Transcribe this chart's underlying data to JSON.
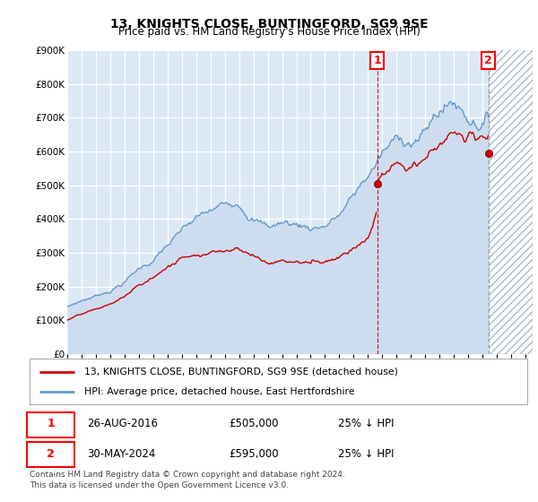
{
  "title": "13, KNIGHTS CLOSE, BUNTINGFORD, SG9 9SE",
  "subtitle": "Price paid vs. HM Land Registry's House Price Index (HPI)",
  "legend_line1": "13, KNIGHTS CLOSE, BUNTINGFORD, SG9 9SE (detached house)",
  "legend_line2": "HPI: Average price, detached house, East Hertfordshire",
  "annotation1_date": "26-AUG-2016",
  "annotation1_price": "£505,000",
  "annotation1_hpi": "25% ↓ HPI",
  "annotation1_year": 2016.65,
  "annotation1_value": 505000,
  "annotation2_date": "30-MAY-2024",
  "annotation2_price": "£595,000",
  "annotation2_hpi": "25% ↓ HPI",
  "annotation2_year": 2024.42,
  "annotation2_value": 595000,
  "footnote": "Contains HM Land Registry data © Crown copyright and database right 2024.\nThis data is licensed under the Open Government Licence v3.0.",
  "bg_color": "#dce9f5",
  "white": "#ffffff",
  "red_color": "#cc0000",
  "blue_color": "#6699cc",
  "ylim": [
    0,
    900000
  ],
  "yticks": [
    0,
    100000,
    200000,
    300000,
    400000,
    500000,
    600000,
    700000,
    800000,
    900000
  ],
  "ylabel_texts": [
    "£0",
    "£100K",
    "£200K",
    "£300K",
    "£400K",
    "£500K",
    "£600K",
    "£700K",
    "£800K",
    "£900K"
  ],
  "xlim_start": 1995.0,
  "xlim_end": 2027.5
}
